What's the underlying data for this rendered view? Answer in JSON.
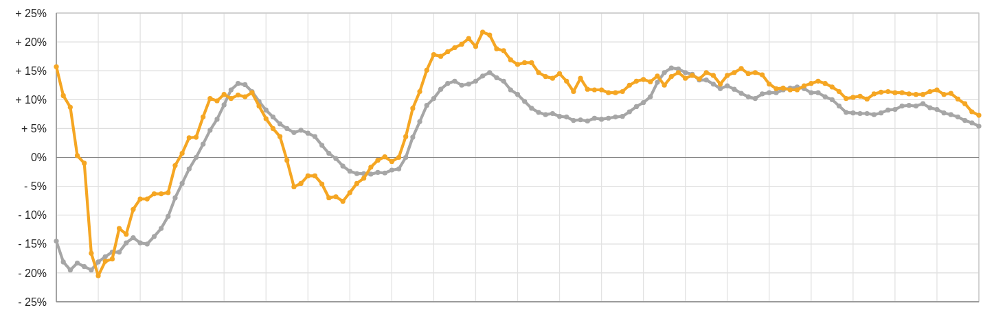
{
  "chart_data": {
    "type": "line",
    "categories": [
      null,
      null,
      null,
      null,
      null,
      null,
      null,
      null,
      null,
      null,
      null,
      null,
      null,
      null,
      null,
      null,
      null,
      null,
      null,
      null,
      null,
      null,
      null,
      null,
      null,
      null,
      null,
      null,
      null,
      null,
      null,
      null,
      null,
      null,
      null,
      null,
      null,
      null,
      null,
      null,
      null,
      null,
      null,
      null,
      null,
      null,
      null,
      null,
      null,
      null,
      null,
      null,
      null,
      null,
      null,
      null,
      null,
      null,
      null,
      null,
      null,
      null,
      null,
      null,
      null,
      null,
      null,
      null,
      null,
      null,
      null,
      null,
      null,
      null,
      null,
      null,
      null,
      null,
      null,
      null,
      null,
      null,
      null,
      null,
      null,
      null,
      null,
      null,
      null,
      null,
      null,
      null,
      null,
      null,
      null,
      null,
      null,
      null,
      null,
      null,
      null,
      null,
      null,
      null,
      null,
      null,
      null,
      null,
      null,
      null,
      null,
      null,
      null,
      null,
      null,
      null,
      null,
      null,
      null,
      null,
      null,
      null,
      null,
      null,
      null,
      null,
      null,
      null,
      null,
      null,
      null,
      null,
      null
    ],
    "ylim": [
      -25,
      25
    ],
    "yticks": [
      {
        "value": 25,
        "label": "+ 25%"
      },
      {
        "value": 20,
        "label": "+ 20%"
      },
      {
        "value": 15,
        "label": "+ 15%"
      },
      {
        "value": 10,
        "label": "+ 10%"
      },
      {
        "value": 5,
        "label": "+ 5%"
      },
      {
        "value": 0,
        "label": "0%"
      },
      {
        "value": -5,
        "label": "- 5%"
      },
      {
        "value": -10,
        "label": "- 10%"
      },
      {
        "value": -15,
        "label": "- 15%"
      },
      {
        "value": -20,
        "label": "- 20%"
      },
      {
        "value": -25,
        "label": "- 25%"
      }
    ],
    "grid": true,
    "marker": "circle",
    "line_style": "solid",
    "ref_lines": [
      {
        "axis": "y",
        "value": 0,
        "color": "#808080"
      }
    ],
    "series": [
      {
        "color": "#a6a6a6",
        "values": [
          -14.5,
          -18.1,
          -19.5,
          -18.3,
          -18.9,
          -19.5,
          -18.1,
          -17.2,
          -16.4,
          -16.4,
          -14.8,
          -13.9,
          -14.8,
          -15.0,
          -13.7,
          -12.3,
          -10.2,
          -7.0,
          -4.5,
          -2.0,
          0.0,
          2.3,
          4.7,
          6.6,
          9.1,
          11.7,
          12.8,
          12.6,
          11.4,
          9.7,
          8.2,
          7.0,
          5.8,
          5.0,
          4.3,
          4.7,
          4.2,
          3.6,
          2.1,
          0.7,
          -0.2,
          -1.5,
          -2.4,
          -2.8,
          -2.8,
          -2.9,
          -2.6,
          -2.7,
          -2.2,
          -2.0,
          0.0,
          3.5,
          6.2,
          9.0,
          10.2,
          11.8,
          12.8,
          13.2,
          12.5,
          12.7,
          13.2,
          14.1,
          14.7,
          13.8,
          13.2,
          11.7,
          10.9,
          9.7,
          8.5,
          7.8,
          7.4,
          7.6,
          7.1,
          7.0,
          6.4,
          6.5,
          6.3,
          6.8,
          6.6,
          6.8,
          7.0,
          7.1,
          7.9,
          8.8,
          9.5,
          10.5,
          13.0,
          14.7,
          15.5,
          15.3,
          14.7,
          14.4,
          13.4,
          13.4,
          12.7,
          11.9,
          12.4,
          11.8,
          11.1,
          10.5,
          10.2,
          11.0,
          11.2,
          11.2,
          11.7,
          12.0,
          12.2,
          11.9,
          11.2,
          11.2,
          10.5,
          10.0,
          8.9,
          7.8,
          7.7,
          7.6,
          7.6,
          7.4,
          7.7,
          8.2,
          8.3,
          8.9,
          9.0,
          8.9,
          9.3,
          8.6,
          8.3,
          7.7,
          7.4,
          7.0,
          6.4,
          6.0,
          5.4
        ]
      },
      {
        "color": "#f5a623",
        "values": [
          15.7,
          10.7,
          8.7,
          0.3,
          -1.0,
          -16.6,
          -20.5,
          -18.0,
          -17.6,
          -12.3,
          -13.3,
          -9.0,
          -7.2,
          -7.2,
          -6.3,
          -6.3,
          -6.1,
          -1.4,
          0.7,
          3.4,
          3.5,
          7.0,
          10.2,
          9.8,
          10.9,
          10.2,
          10.8,
          10.5,
          11.2,
          8.9,
          6.7,
          5.0,
          3.6,
          -0.5,
          -5.1,
          -4.5,
          -3.2,
          -3.2,
          -4.6,
          -7.0,
          -6.8,
          -7.6,
          -6.1,
          -4.5,
          -3.6,
          -1.7,
          -0.5,
          0.1,
          -0.7,
          0.0,
          3.6,
          8.5,
          11.4,
          15.1,
          17.8,
          17.5,
          18.3,
          19.0,
          19.6,
          20.6,
          19.2,
          21.7,
          21.2,
          18.8,
          18.5,
          16.9,
          16.1,
          16.4,
          16.4,
          14.7,
          14.0,
          13.7,
          14.5,
          13.2,
          11.4,
          13.7,
          11.8,
          11.7,
          11.7,
          11.2,
          11.2,
          11.4,
          12.5,
          13.2,
          13.5,
          13.1,
          14.1,
          12.5,
          14.0,
          14.7,
          13.7,
          14.2,
          13.6,
          14.7,
          14.2,
          12.7,
          14.2,
          14.7,
          15.4,
          14.5,
          14.7,
          14.3,
          12.7,
          11.9,
          12.0,
          11.7,
          11.7,
          12.4,
          12.8,
          13.2,
          12.8,
          12.2,
          11.4,
          10.2,
          10.4,
          10.6,
          10.1,
          11.0,
          11.3,
          11.4,
          11.2,
          11.2,
          11.0,
          10.9,
          10.9,
          11.4,
          11.7,
          10.9,
          11.1,
          10.1,
          9.3,
          7.9,
          7.3
        ]
      }
    ]
  }
}
